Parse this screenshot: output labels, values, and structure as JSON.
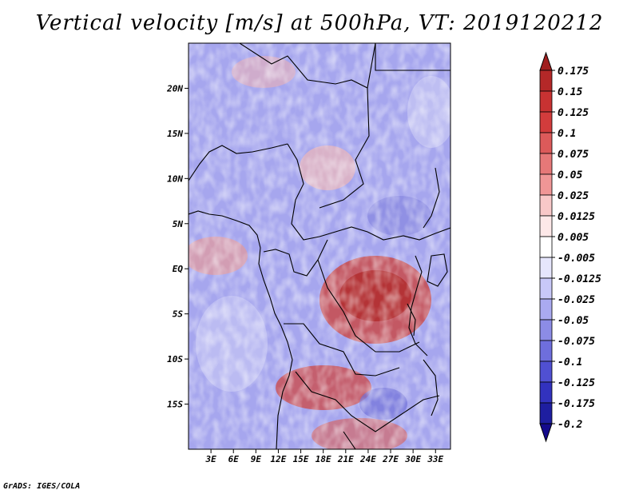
{
  "chart_data": {
    "type": "heatmap",
    "title": "Vertical velocity [m/s] at 500hPa, VT: 2019120212",
    "variable": "Vertical velocity",
    "units": "m/s",
    "level": "500hPa",
    "valid_time": "2019120212",
    "xlabel": "",
    "ylabel": "",
    "x_range": [
      0,
      35
    ],
    "y_range": [
      -20,
      25
    ],
    "x_ticks": [
      {
        "value": 3,
        "label": "3E"
      },
      {
        "value": 6,
        "label": "6E"
      },
      {
        "value": 9,
        "label": "9E"
      },
      {
        "value": 12,
        "label": "12E"
      },
      {
        "value": 15,
        "label": "15E"
      },
      {
        "value": 18,
        "label": "18E"
      },
      {
        "value": 21,
        "label": "21E"
      },
      {
        "value": 24,
        "label": "24E"
      },
      {
        "value": 27,
        "label": "27E"
      },
      {
        "value": 30,
        "label": "30E"
      },
      {
        "value": 33,
        "label": "33E"
      }
    ],
    "y_ticks": [
      {
        "value": 20,
        "label": "20N"
      },
      {
        "value": 15,
        "label": "15N"
      },
      {
        "value": 10,
        "label": "10N"
      },
      {
        "value": 5,
        "label": "5N"
      },
      {
        "value": 0,
        "label": "EQ"
      },
      {
        "value": -5,
        "label": "5S"
      },
      {
        "value": -10,
        "label": "10S"
      },
      {
        "value": -15,
        "label": "15S"
      }
    ],
    "colorbar": {
      "labels": [
        "0.175",
        "0.15",
        "0.125",
        "0.1",
        "0.075",
        "0.05",
        "0.025",
        "0.0125",
        "0.005",
        "-0.005",
        "-0.0125",
        "-0.025",
        "-0.05",
        "-0.075",
        "-0.1",
        "-0.125",
        "-0.175",
        "-0.2"
      ],
      "colors": [
        "#a01e1e",
        "#b42828",
        "#c83232",
        "#d23c3c",
        "#dc5a5a",
        "#e67878",
        "#f09696",
        "#f8c8c8",
        "#fde8e8",
        "#ffffff",
        "#e6e6fc",
        "#c8c8f8",
        "#aaaaf0",
        "#8c8ce6",
        "#6e6edc",
        "#5050d2",
        "#3232be",
        "#1e1ea0",
        "#140a8c"
      ]
    }
  },
  "credit": "GrADS: IGES/COLA"
}
